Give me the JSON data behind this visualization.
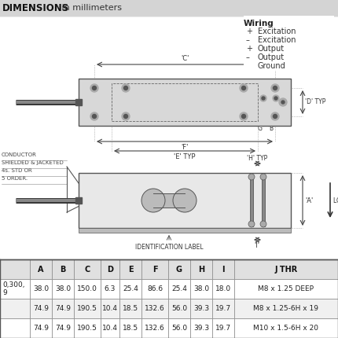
{
  "header_text_bold": "DIMENSIONS",
  "header_text_normal": " in millimeters",
  "header_bg": "#d4d4d4",
  "drawing_bg": "#ffffff",
  "table_bg": "#ffffff",
  "table_header_bg": "#e8e8e8",
  "table_row0_bg": "#ffffff",
  "table_row1_bg": "#f5f5f5",
  "table_headers": [
    "",
    "A",
    "B",
    "C",
    "D",
    "E",
    "F",
    "G",
    "H",
    "I",
    "J THR"
  ],
  "table_rows": [
    [
      "0,300,\n9",
      "38.0",
      "38.0",
      "150.0",
      "6.3",
      "25.4",
      "86.6",
      "25.4",
      "38.0",
      "18.0",
      "M8 x 1.25 DEEP"
    ],
    [
      "",
      "74.9",
      "74.9",
      "190.5",
      "10.4",
      "18.5",
      "132.6",
      "56.0",
      "39.3",
      "19.7",
      "M8 x 1.25-6H x 19"
    ],
    [
      "",
      "74.9",
      "74.9",
      "190.5",
      "10.4",
      "18.5",
      "132.6",
      "56.0",
      "39.3",
      "19.7",
      "M10 x 1.5-6H x 20"
    ]
  ],
  "wiring_title": "Wiring",
  "wiring_lines": [
    [
      "+",
      "Excitation"
    ],
    [
      "–",
      "Excitation"
    ],
    [
      "+",
      "Output"
    ],
    [
      "–",
      "Output"
    ],
    [
      "",
      "Ground"
    ]
  ],
  "conductor_lines": [
    "CONDUCTOR",
    "SHIELDED & JACKETED",
    "4s. STD OR",
    "5 ORDER."
  ],
  "body_color": "#cccccc",
  "body_edge": "#555555",
  "cable_color": "#333333",
  "dim_line_color": "#444444",
  "text_color": "#333333",
  "label_fontsize": 5.5,
  "dim_fontsize": 6.0
}
